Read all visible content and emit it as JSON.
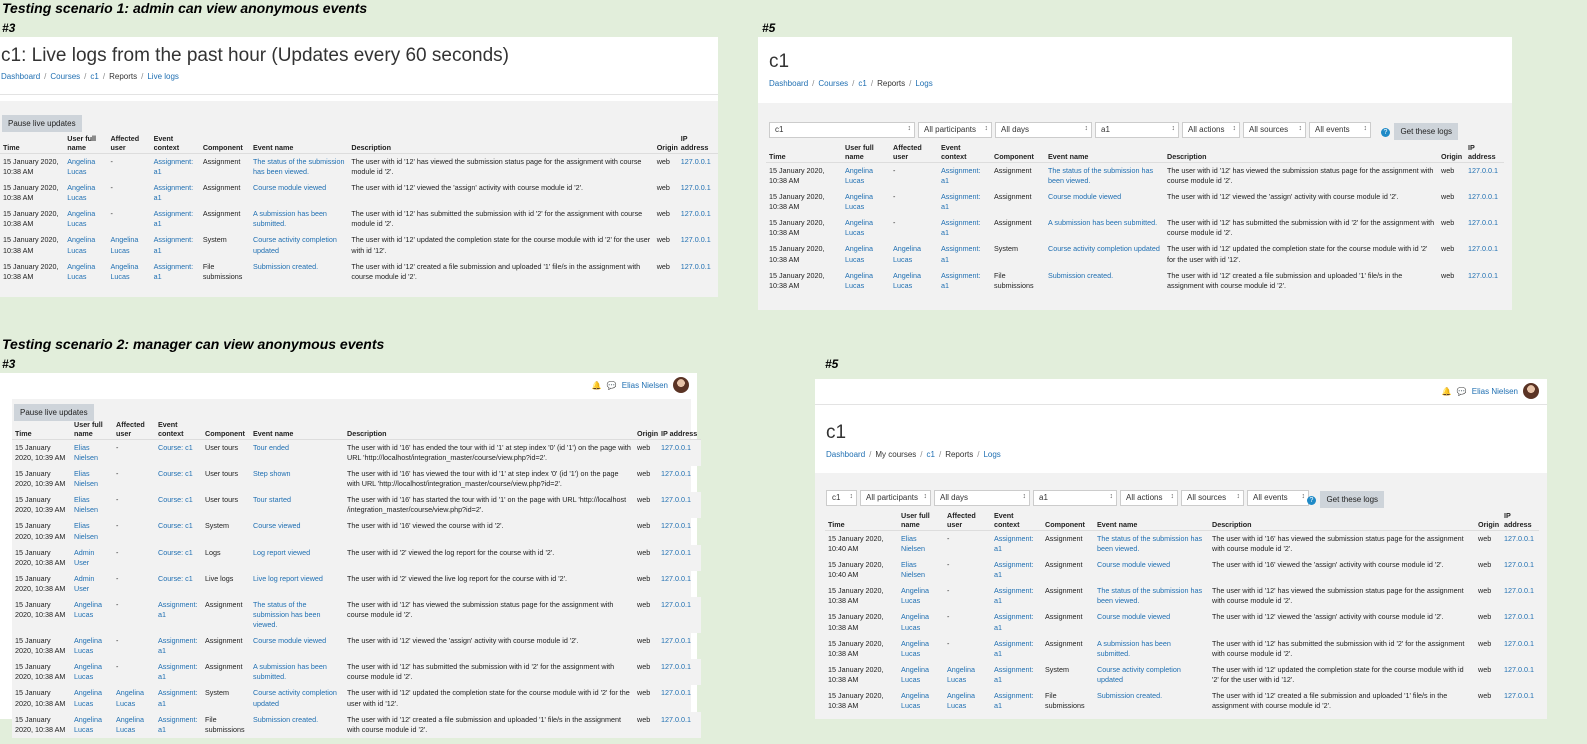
{
  "scenario1": {
    "heading": "Testing scenario 1: admin can view anonymous events",
    "left": {
      "label": "#3",
      "title": "c1: Live logs from the past hour (Updates every 60 seconds)",
      "crumbs": [
        "Dashboard",
        "Courses",
        "c1",
        "Reports",
        "Live logs"
      ],
      "button": "Pause live updates",
      "rows": [
        [
          "15 January 2020, 10:38 AM",
          "Angelina Lucas",
          "-",
          "Assignment: a1",
          "Assignment",
          "The status of the submission has been viewed.",
          "The user with id '12' has viewed the submission status page for the assignment with course module id '2'.",
          "web",
          "127.0.0.1"
        ],
        [
          "15 January 2020, 10:38 AM",
          "Angelina Lucas",
          "-",
          "Assignment: a1",
          "Assignment",
          "Course module viewed",
          "The user with id '12' viewed the 'assign' activity with course module id '2'.",
          "web",
          "127.0.0.1"
        ],
        [
          "15 January 2020, 10:38 AM",
          "Angelina Lucas",
          "-",
          "Assignment: a1",
          "Assignment",
          "A submission has been submitted.",
          "The user with id '12' has submitted the submission with id '2' for the assignment with course module id '2'.",
          "web",
          "127.0.0.1"
        ],
        [
          "15 January 2020, 10:38 AM",
          "Angelina Lucas",
          "Angelina Lucas",
          "Assignment: a1",
          "System",
          "Course activity completion updated",
          "The user with id '12' updated the completion state for the course module with id '2' for the user with id '12'.",
          "web",
          "127.0.0.1"
        ],
        [
          "15 January 2020, 10:38 AM",
          "Angelina Lucas",
          "Angelina Lucas",
          "Assignment: a1",
          "File submissions",
          "Submission created.",
          "The user with id '12' created a file submission and uploaded '1' file/s in the assignment with course module id '2'.",
          "web",
          "127.0.0.1"
        ]
      ]
    },
    "right": {
      "label": "#5",
      "title": "c1",
      "crumbs": [
        "Dashboard",
        "Courses",
        "c1",
        "Reports",
        "Logs"
      ],
      "filters": [
        "c1",
        "All participants",
        "All days",
        "a1",
        "All actions",
        "All sources",
        "All events"
      ],
      "button": "Get these logs",
      "rows": [
        [
          "15 January 2020, 10:38 AM",
          "Angelina Lucas",
          "-",
          "Assignment: a1",
          "Assignment",
          "The status of the submission has been viewed.",
          "The user with id '12' has viewed the submission status page for the assignment with course module id '2'.",
          "web",
          "127.0.0.1"
        ],
        [
          "15 January 2020, 10:38 AM",
          "Angelina Lucas",
          "-",
          "Assignment: a1",
          "Assignment",
          "Course module viewed",
          "The user with id '12' viewed the 'assign' activity with course module id '2'.",
          "web",
          "127.0.0.1"
        ],
        [
          "15 January 2020, 10:38 AM",
          "Angelina Lucas",
          "-",
          "Assignment: a1",
          "Assignment",
          "A submission has been submitted.",
          "The user with id '12' has submitted the submission with id '2' for the assignment with course module id '2'.",
          "web",
          "127.0.0.1"
        ],
        [
          "15 January 2020, 10:38 AM",
          "Angelina Lucas",
          "Angelina Lucas",
          "Assignment: a1",
          "System",
          "Course activity completion updated",
          "The user with id '12' updated the completion state for the course module with id '2' for the user with id '12'.",
          "web",
          "127.0.0.1"
        ],
        [
          "15 January 2020, 10:38 AM",
          "Angelina Lucas",
          "Angelina Lucas",
          "Assignment: a1",
          "File submissions",
          "Submission created.",
          "The user with id '12' created a file submission and uploaded '1' file/s in the assignment with course module id '2'.",
          "web",
          "127.0.0.1"
        ]
      ]
    }
  },
  "scenario2": {
    "heading": "Testing scenario 2: manager can view anonymous events",
    "user_name": "Elias Nielsen",
    "left": {
      "label": "#3",
      "button": "Pause live updates",
      "rows": [
        [
          "15 January 2020, 10:39 AM",
          "Elias Nielsen",
          "-",
          "Course: c1",
          "User tours",
          "Tour ended",
          "The user with id '16' has ended the tour with id '1' at step index '0' (id '1') on the page with URL 'http://localhost/integration_master/course/view.php?id=2'.",
          "web",
          "127.0.0.1"
        ],
        [
          "15 January 2020, 10:39 AM",
          "Elias Nielsen",
          "-",
          "Course: c1",
          "User tours",
          "Step shown",
          "The user with id '16' has viewed the tour with id '1' at step index '0' (id '1') on the page with URL 'http://localhost/integration_master/course/view.php?id=2'.",
          "web",
          "127.0.0.1"
        ],
        [
          "15 January 2020, 10:39 AM",
          "Elias Nielsen",
          "-",
          "Course: c1",
          "User tours",
          "Tour started",
          "The user with id '16' has started the tour with id '1' on the page with URL 'http://localhost /integration_master/course/view.php?id=2'.",
          "web",
          "127.0.0.1"
        ],
        [
          "15 January 2020, 10:39 AM",
          "Elias Nielsen",
          "-",
          "Course: c1",
          "System",
          "Course viewed",
          "The user with id '16' viewed the course with id '2'.",
          "web",
          "127.0.0.1"
        ],
        [
          "15 January 2020, 10:38 AM",
          "Admin User",
          "-",
          "Course: c1",
          "Logs",
          "Log report viewed",
          "The user with id '2' viewed the log report for the course with id '2'.",
          "web",
          "127.0.0.1"
        ],
        [
          "15 January 2020, 10:38 AM",
          "Admin User",
          "-",
          "Course: c1",
          "Live logs",
          "Live log report viewed",
          "The user with id '2' viewed the live log report for the course with id '2'.",
          "web",
          "127.0.0.1"
        ],
        [
          "15 January 2020, 10:38 AM",
          "Angelina Lucas",
          "-",
          "Assignment: a1",
          "Assignment",
          "The status of the submission has been viewed.",
          "The user with id '12' has viewed the submission status page for the assignment with course module id '2'.",
          "web",
          "127.0.0.1"
        ],
        [
          "15 January 2020, 10:38 AM",
          "Angelina Lucas",
          "-",
          "Assignment: a1",
          "Assignment",
          "Course module viewed",
          "The user with id '12' viewed the 'assign' activity with course module id '2'.",
          "web",
          "127.0.0.1"
        ],
        [
          "15 January 2020, 10:38 AM",
          "Angelina Lucas",
          "-",
          "Assignment: a1",
          "Assignment",
          "A submission has been submitted.",
          "The user with id '12' has submitted the submission with id '2' for the assignment with course module id '2'.",
          "web",
          "127.0.0.1"
        ],
        [
          "15 January 2020, 10:38 AM",
          "Angelina Lucas",
          "Angelina Lucas",
          "Assignment: a1",
          "System",
          "Course activity completion updated",
          "The user with id '12' updated the completion state for the course module with id '2' for the user with id '12'.",
          "web",
          "127.0.0.1"
        ],
        [
          "15 January 2020, 10:38 AM",
          "Angelina Lucas",
          "Angelina Lucas",
          "Assignment: a1",
          "File submissions",
          "Submission created.",
          "The user with id '12' created a file submission and uploaded '1' file/s in the assignment with course module id '2'.",
          "web",
          "127.0.0.1"
        ]
      ]
    },
    "right": {
      "label": "#5",
      "title": "c1",
      "crumbs": [
        "Dashboard",
        "My courses",
        "c1",
        "Reports",
        "Logs"
      ],
      "filters": [
        "c1",
        "All participants",
        "All days",
        "a1",
        "All actions",
        "All sources",
        "All events"
      ],
      "button": "Get these logs",
      "rows": [
        [
          "15 January 2020, 10:40 AM",
          "Elias Nielsen",
          "-",
          "Assignment: a1",
          "Assignment",
          "The status of the submission has been viewed.",
          "The user with id '16' has viewed the submission status page for the assignment with course module id '2'.",
          "web",
          "127.0.0.1"
        ],
        [
          "15 January 2020, 10:40 AM",
          "Elias Nielsen",
          "-",
          "Assignment: a1",
          "Assignment",
          "Course module viewed",
          "The user with id '16' viewed the 'assign' activity with course module id '2'.",
          "web",
          "127.0.0.1"
        ],
        [
          "15 January 2020, 10:38 AM",
          "Angelina Lucas",
          "-",
          "Assignment: a1",
          "Assignment",
          "The status of the submission has been viewed.",
          "The user with id '12' has viewed the submission status page for the assignment with course module id '2'.",
          "web",
          "127.0.0.1"
        ],
        [
          "15 January 2020, 10:38 AM",
          "Angelina Lucas",
          "-",
          "Assignment: a1",
          "Assignment",
          "Course module viewed",
          "The user with id '12' viewed the 'assign' activity with course module id '2'.",
          "web",
          "127.0.0.1"
        ],
        [
          "15 January 2020, 10:38 AM",
          "Angelina Lucas",
          "-",
          "Assignment: a1",
          "Assignment",
          "A submission has been submitted.",
          "The user with id '12' has submitted the submission with id '2' for the assignment with course module id '2'.",
          "web",
          "127.0.0.1"
        ],
        [
          "15 January 2020, 10:38 AM",
          "Angelina Lucas",
          "Angelina Lucas",
          "Assignment: a1",
          "System",
          "Course activity completion updated",
          "The user with id '12' updated the completion state for the course module with id '2' for the user with id '12'.",
          "web",
          "127.0.0.1"
        ],
        [
          "15 January 2020, 10:38 AM",
          "Angelina Lucas",
          "Angelina Lucas",
          "Assignment: a1",
          "File submissions",
          "Submission created.",
          "The user with id '12' created a file submission and uploaded '1' file/s in the assignment with course module id '2'.",
          "web",
          "127.0.0.1"
        ]
      ]
    }
  },
  "columns": [
    "Time",
    "User full name",
    "Affected user",
    "Event context",
    "Component",
    "Event name",
    "Description",
    "Origin",
    "IP address"
  ],
  "colors": {
    "link": "#1f6fb2",
    "background": "#e2eedb",
    "button": "#ced4da"
  }
}
